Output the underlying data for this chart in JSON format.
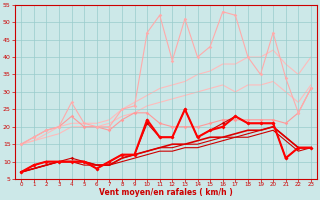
{
  "background_color": "#cce8e8",
  "grid_color": "#99cccc",
  "xlabel": "Vent moyen/en rafales ( km/h )",
  "xlabel_color": "#cc0000",
  "xlim": [
    -0.5,
    23.5
  ],
  "ylim": [
    5,
    55
  ],
  "yticks": [
    5,
    10,
    15,
    20,
    25,
    30,
    35,
    40,
    45,
    50,
    55
  ],
  "xticks": [
    0,
    1,
    2,
    3,
    4,
    5,
    6,
    7,
    8,
    9,
    10,
    11,
    12,
    13,
    14,
    15,
    16,
    17,
    18,
    19,
    20,
    21,
    22,
    23
  ],
  "series": [
    {
      "x": [
        0,
        1,
        2,
        3,
        4,
        5,
        6,
        7,
        8,
        9,
        10,
        11,
        12,
        13,
        14,
        15,
        16,
        17,
        18,
        19,
        20,
        21,
        22,
        23
      ],
      "y": [
        15,
        16,
        17,
        18,
        20,
        20,
        20,
        21,
        23,
        24,
        26,
        27,
        28,
        29,
        30,
        31,
        32,
        30,
        32,
        32,
        33,
        30,
        27,
        32
      ],
      "color": "#ffbbbb",
      "linewidth": 0.8,
      "marker": null,
      "markersize": 0,
      "zorder": 1
    },
    {
      "x": [
        0,
        1,
        2,
        3,
        4,
        5,
        6,
        7,
        8,
        9,
        10,
        11,
        12,
        13,
        14,
        15,
        16,
        17,
        18,
        19,
        20,
        21,
        22,
        23
      ],
      "y": [
        15,
        16,
        18,
        20,
        21,
        21,
        21,
        22,
        25,
        27,
        29,
        31,
        32,
        33,
        35,
        36,
        38,
        38,
        40,
        40,
        42,
        38,
        35,
        40
      ],
      "color": "#ffbbbb",
      "linewidth": 0.8,
      "marker": null,
      "markersize": 0,
      "zorder": 1
    },
    {
      "x": [
        0,
        1,
        2,
        3,
        4,
        5,
        6,
        7,
        8,
        9,
        10,
        11,
        12,
        13,
        14,
        15,
        16,
        17,
        18,
        19,
        20,
        21,
        22,
        23
      ],
      "y": [
        15,
        17,
        19,
        20,
        23,
        20,
        20,
        19,
        22,
        24,
        24,
        21,
        20,
        20,
        20,
        21,
        22,
        22,
        22,
        22,
        22,
        21,
        24,
        31
      ],
      "color": "#ff9999",
      "linewidth": 0.8,
      "marker": "D",
      "markersize": 1.8,
      "zorder": 2
    },
    {
      "x": [
        0,
        1,
        2,
        3,
        4,
        5,
        6,
        7,
        8,
        9,
        10,
        11,
        12,
        13,
        14,
        15,
        16,
        17,
        18,
        19,
        20,
        21,
        22,
        23
      ],
      "y": [
        15,
        17,
        19,
        20,
        27,
        21,
        20,
        20,
        25,
        26,
        47,
        52,
        39,
        51,
        40,
        43,
        53,
        52,
        40,
        35,
        47,
        34,
        24,
        31
      ],
      "color": "#ffaaaa",
      "linewidth": 0.8,
      "marker": "D",
      "markersize": 1.8,
      "zorder": 2
    },
    {
      "x": [
        0,
        1,
        2,
        3,
        4,
        5,
        6,
        7,
        8,
        9,
        10,
        11,
        12,
        13,
        14,
        15,
        16,
        17,
        18,
        19,
        20,
        21,
        22,
        23
      ],
      "y": [
        7,
        8,
        9,
        10,
        10,
        9,
        9,
        9,
        10,
        11,
        12,
        13,
        13,
        14,
        14,
        15,
        16,
        17,
        17,
        18,
        19,
        16,
        13,
        14
      ],
      "color": "#cc0000",
      "linewidth": 0.8,
      "marker": null,
      "markersize": 0,
      "zorder": 3
    },
    {
      "x": [
        0,
        1,
        2,
        3,
        4,
        5,
        6,
        7,
        8,
        9,
        10,
        11,
        12,
        13,
        14,
        15,
        16,
        17,
        18,
        19,
        20,
        21,
        22,
        23
      ],
      "y": [
        7,
        8,
        9,
        10,
        10,
        10,
        9,
        9,
        11,
        12,
        13,
        14,
        14,
        15,
        15,
        16,
        17,
        17,
        18,
        19,
        20,
        17,
        14,
        14
      ],
      "color": "#cc0000",
      "linewidth": 0.8,
      "marker": null,
      "markersize": 0,
      "zorder": 3
    },
    {
      "x": [
        0,
        1,
        2,
        3,
        4,
        5,
        6,
        7,
        8,
        9,
        10,
        11,
        12,
        13,
        14,
        15,
        16,
        17,
        18,
        19,
        20,
        21,
        22,
        23
      ],
      "y": [
        7,
        8,
        9,
        10,
        10,
        10,
        9,
        9,
        11,
        12,
        13,
        14,
        15,
        15,
        16,
        17,
        17,
        18,
        19,
        19,
        20,
        17,
        14,
        14
      ],
      "color": "#dd0000",
      "linewidth": 1.2,
      "marker": null,
      "markersize": 0,
      "zorder": 3
    },
    {
      "x": [
        0,
        1,
        2,
        3,
        4,
        5,
        6,
        7,
        8,
        9,
        10,
        11,
        12,
        13,
        14,
        15,
        16,
        17,
        18,
        19,
        20,
        21,
        22,
        23
      ],
      "y": [
        7,
        9,
        10,
        10,
        11,
        10,
        8,
        10,
        12,
        12,
        21,
        17,
        17,
        25,
        17,
        19,
        21,
        23,
        21,
        21,
        21,
        11,
        14,
        14
      ],
      "color": "#cc0000",
      "linewidth": 0.8,
      "marker": "D",
      "markersize": 1.8,
      "zorder": 4
    },
    {
      "x": [
        0,
        1,
        2,
        3,
        4,
        5,
        6,
        7,
        8,
        9,
        10,
        11,
        12,
        13,
        14,
        15,
        16,
        17,
        18,
        19,
        20,
        21,
        22,
        23
      ],
      "y": [
        7,
        9,
        10,
        10,
        10,
        10,
        8,
        10,
        12,
        12,
        22,
        17,
        17,
        25,
        17,
        19,
        20,
        23,
        21,
        21,
        21,
        11,
        14,
        14
      ],
      "color": "#ff0000",
      "linewidth": 1.5,
      "marker": "D",
      "markersize": 2.0,
      "zorder": 5
    }
  ]
}
